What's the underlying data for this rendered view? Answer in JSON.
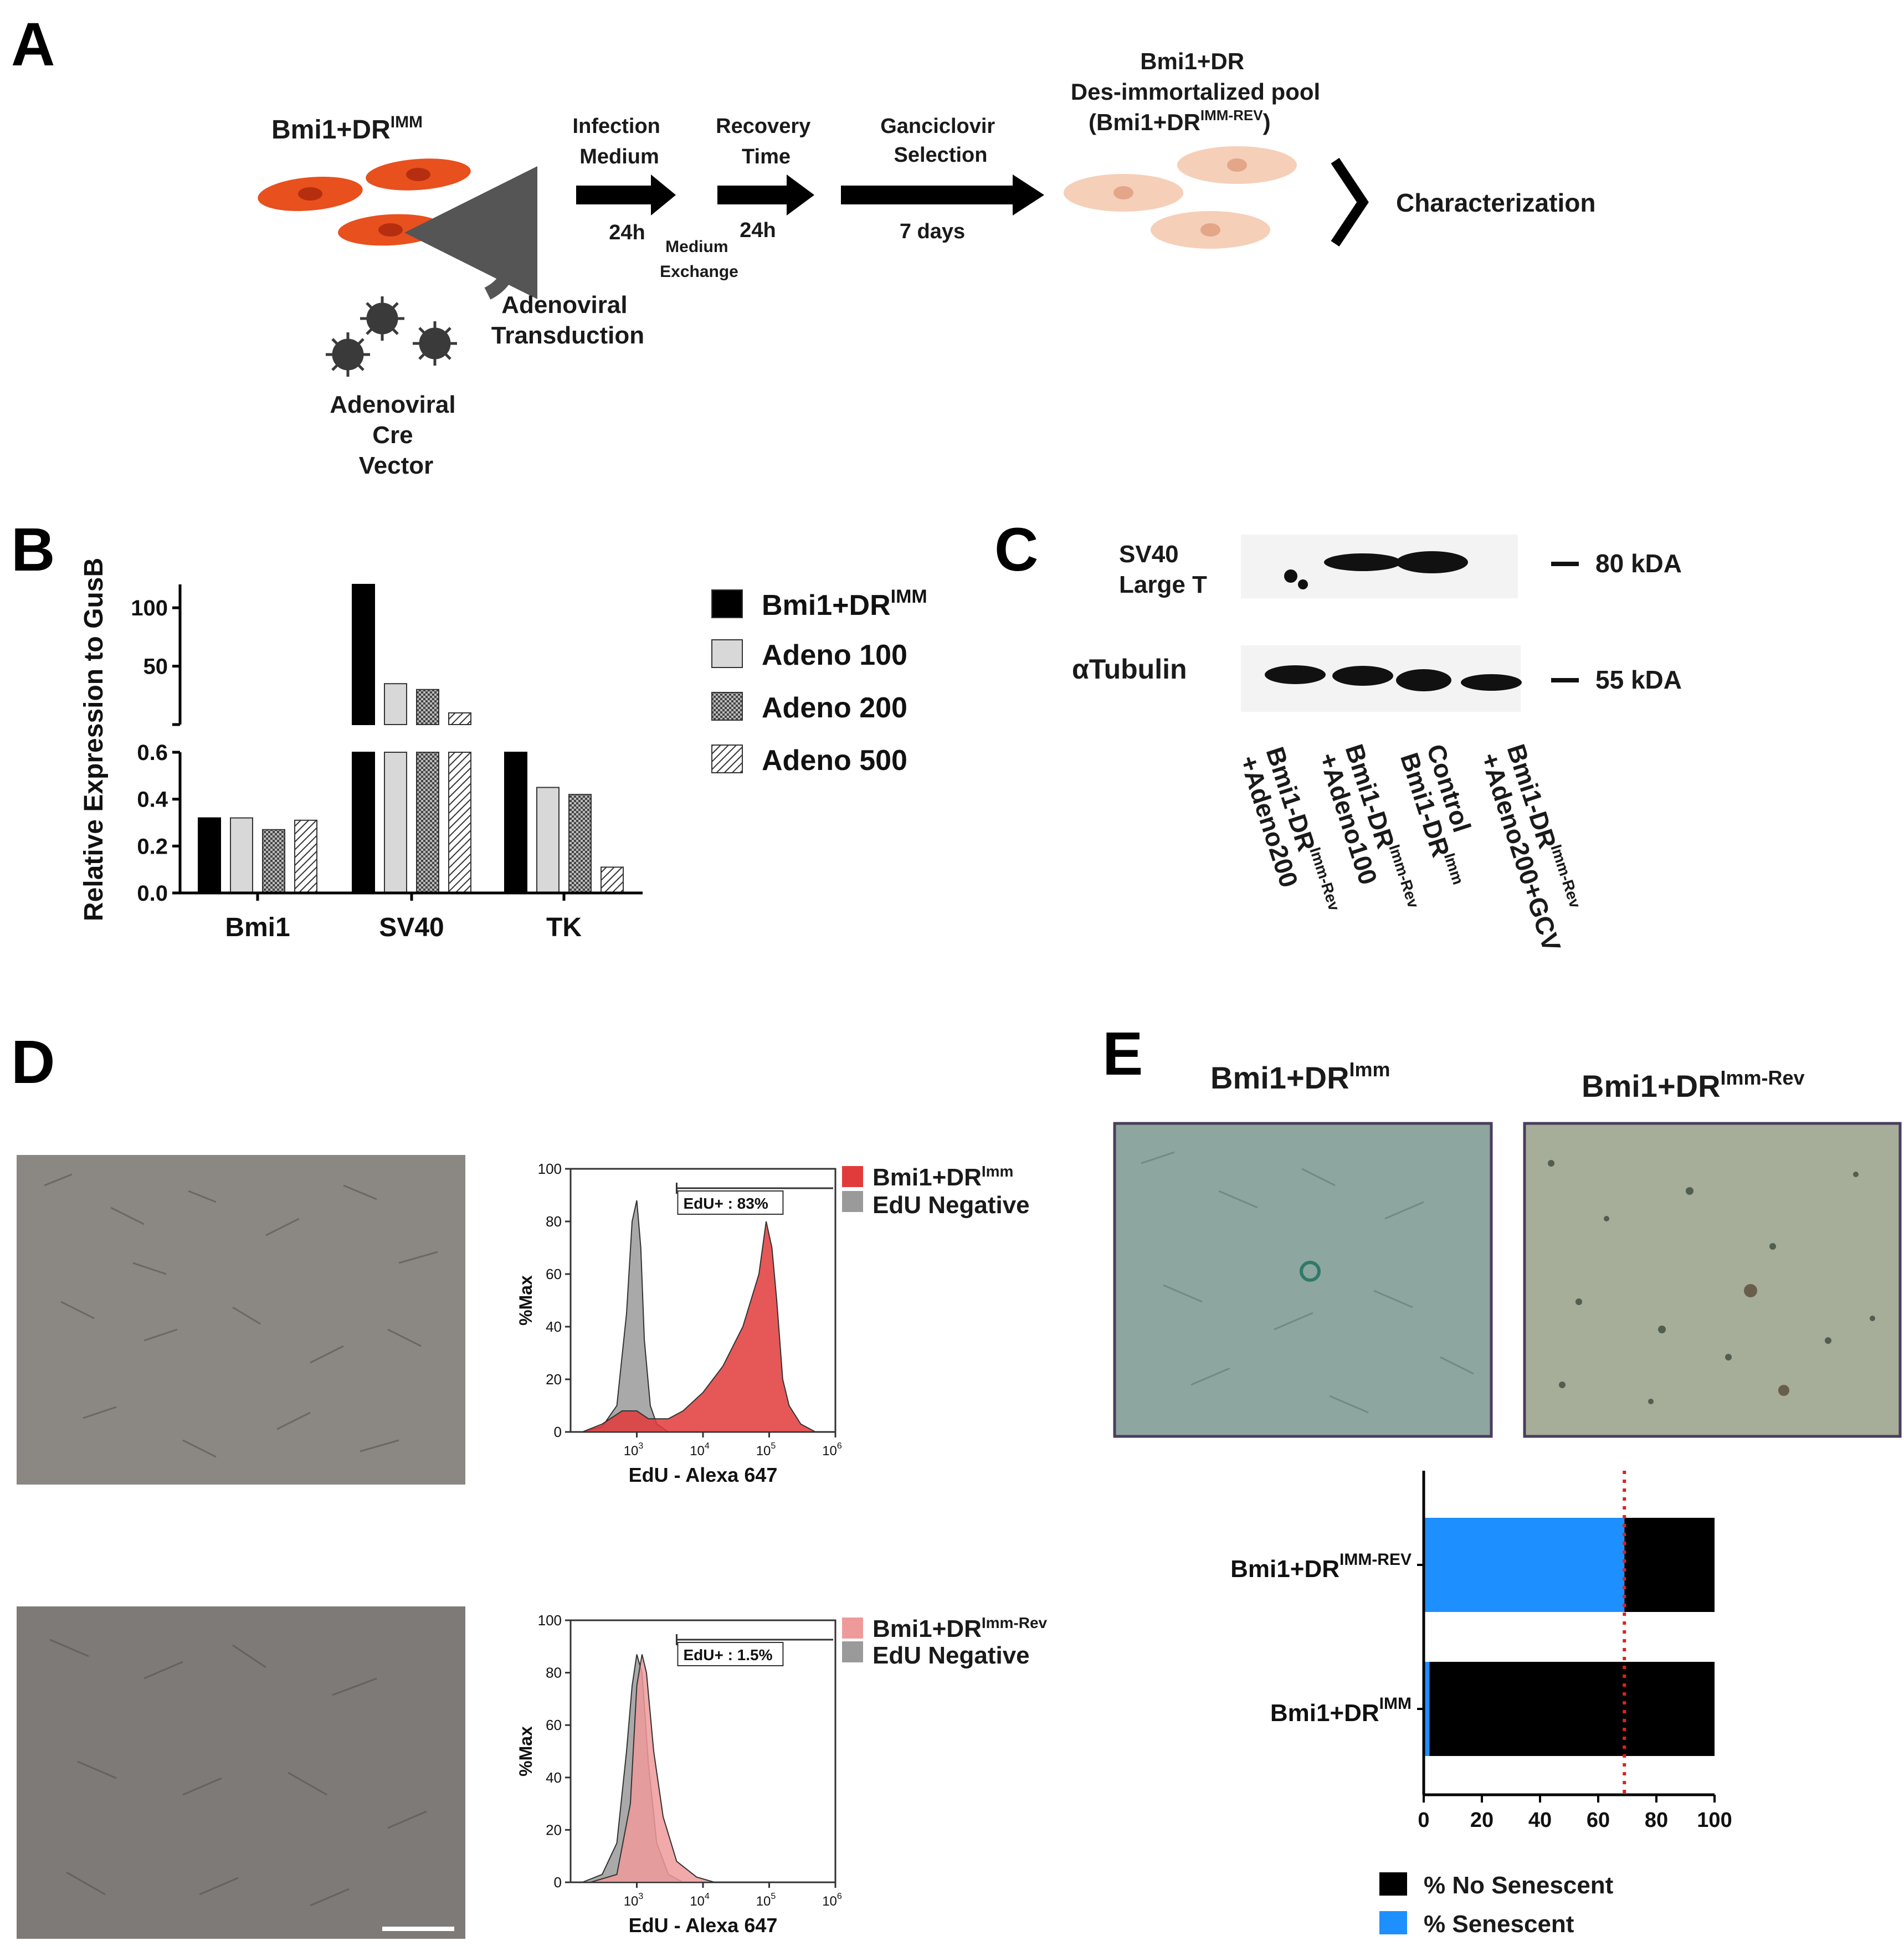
{
  "panels": {
    "a": "A",
    "b": "B",
    "c": "C",
    "d": "D",
    "e": "E"
  },
  "panel_a": {
    "cell_title": "Bmi1+DR",
    "cell_title_sup": "IMM",
    "vector_label": [
      "Adenoviral",
      "Cre",
      "Vector"
    ],
    "transduction_label": [
      "Adenoviral",
      "Transduction"
    ],
    "step1": {
      "label": [
        "Infection",
        "Medium"
      ],
      "time": "24h"
    },
    "medium_exchange": [
      "Medium",
      "Exchange"
    ],
    "step2": {
      "label": [
        "Recovery",
        "Time"
      ],
      "time": "24h"
    },
    "step3": {
      "label": [
        "Ganciclovir",
        "Selection"
      ],
      "time": "7 days"
    },
    "pool_title": [
      "Bmi1+DR",
      "Des-immortalized pool",
      "(Bmi1+DR"
    ],
    "pool_sup": "IMM-REV",
    "characterization": "Characterization",
    "colors": {
      "immortal_cell": "#e8501e",
      "reverted_cell": "#f6cfb8",
      "virus": "#3a3a3a"
    }
  },
  "panel_c": {
    "rows": [
      {
        "label": [
          "SV40",
          "Large T"
        ],
        "marker": "80 kDA"
      },
      {
        "label": [
          "αTubulin"
        ],
        "marker": "55 kDA"
      }
    ],
    "lanes": [
      {
        "line1": "Bmi1-DR",
        "sup": "Imm-Rev",
        "line2": "+Adeno200"
      },
      {
        "line1": "Bmi1-DR",
        "sup": "Imm-Rev",
        "line2": "+Adeno100"
      },
      {
        "line1": "Control",
        "sup": "",
        "line2": "Bmi1-DR",
        "line2_sup": "Imm"
      },
      {
        "line1": "Bmi1-DR",
        "sup": "Imm-Rev",
        "line2": "+Adeno200+GCV"
      }
    ]
  },
  "panel_d": {
    "top": {
      "legend": [
        "Bmi1+DR",
        "EdU Negative"
      ],
      "legend_sup": "Imm",
      "gate": "EdU+ : 83%"
    },
    "bottom": {
      "legend": [
        "Bmi1+DR",
        "EdU Negative"
      ],
      "legend_sup": "Imm-Rev",
      "gate": "EdU+ : 1.5%"
    },
    "xlabel": "EdU - Alexa 647",
    "ylabel": "%Max",
    "yticks": [
      "0",
      "20",
      "40",
      "60",
      "80",
      "100"
    ],
    "xticks": [
      {
        "base": "10",
        "exp": "3"
      },
      {
        "base": "10",
        "exp": "4"
      },
      {
        "base": "10",
        "exp": "5"
      },
      {
        "base": "10",
        "exp": "6"
      }
    ],
    "colors": {
      "edu_pos": "#e23b3b",
      "edu_neg": "#9a9a9a",
      "edu_pos_low": "#ef9a9a"
    }
  },
  "panel_e": {
    "image_titles": [
      {
        "text": "Bmi1+DR",
        "sup": "Imm"
      },
      {
        "text": "Bmi1+DR",
        "sup": "Imm-Rev"
      }
    ],
    "legend": [
      "% No Senescent",
      "% Senescent"
    ],
    "colors": {
      "no_senescent": "#000000",
      "senescent": "#1e8fff",
      "threshold": "#e02020"
    }
  },
  "chart_data": [
    {
      "id": "panel-b",
      "type": "bar",
      "ylabel": "Relative Expression to GusB",
      "categories": [
        "Bmi1",
        "SV40",
        "TK"
      ],
      "series": [
        {
          "name": "Bmi1+DR",
          "name_sup": "IMM",
          "values": [
            0.32,
            120,
            0.6
          ],
          "fill": "#000000"
        },
        {
          "name": "Adeno 100",
          "values": [
            0.32,
            35,
            0.45
          ],
          "fill": "#d8d8d8"
        },
        {
          "name": "Adeno 200",
          "values": [
            0.27,
            30,
            0.42
          ],
          "fill": "checker"
        },
        {
          "name": "Adeno 500",
          "values": [
            0.31,
            10,
            0.11
          ],
          "fill": "hatch"
        }
      ],
      "axis_lower": {
        "ylim": [
          0,
          0.6
        ],
        "ticks": [
          "0.0",
          "0.2",
          "0.4",
          "0.6"
        ]
      },
      "axis_upper": {
        "ylim": [
          0,
          120
        ],
        "ticks": [
          "50",
          "100"
        ]
      },
      "legend_position": "right"
    },
    {
      "id": "panel-d-top",
      "type": "area",
      "xscale": "log",
      "xlim": [
        100,
        1000000
      ],
      "ylim": [
        0,
        100
      ],
      "series": [
        {
          "name": "EdU Negative",
          "x": [
            150,
            300,
            500,
            700,
            850,
            1000,
            1150,
            1300,
            1600,
            2000,
            3000
          ],
          "y": [
            0,
            2,
            10,
            45,
            80,
            88,
            70,
            35,
            10,
            3,
            0
          ]
        },
        {
          "name": "Bmi1+DR",
          "name_sup": "Imm",
          "x": [
            150,
            300,
            600,
            1000,
            1500,
            3000,
            5000,
            10000,
            20000,
            40000,
            70000,
            90000,
            110000,
            130000,
            160000,
            200000,
            300000,
            500000,
            800000
          ],
          "y": [
            0,
            3,
            8,
            8,
            5,
            5,
            8,
            15,
            25,
            40,
            60,
            80,
            70,
            50,
            20,
            10,
            3,
            0,
            0
          ]
        }
      ]
    },
    {
      "id": "panel-d-bottom",
      "type": "area",
      "xscale": "log",
      "xlim": [
        100,
        1000000
      ],
      "ylim": [
        0,
        100
      ],
      "series": [
        {
          "name": "EdU Negative",
          "x": [
            150,
            300,
            500,
            700,
            850,
            1000,
            1200,
            1500,
            2000,
            3000,
            5000
          ],
          "y": [
            0,
            3,
            15,
            50,
            75,
            87,
            80,
            45,
            15,
            3,
            0
          ]
        },
        {
          "name": "Bmi1+DR",
          "name_sup": "Imm-Rev",
          "x": [
            200,
            500,
            800,
            1000,
            1200,
            1400,
            1800,
            2500,
            4000,
            8000,
            15000
          ],
          "y": [
            0,
            3,
            30,
            75,
            87,
            80,
            50,
            25,
            8,
            2,
            0
          ]
        }
      ]
    },
    {
      "id": "panel-e",
      "type": "bar",
      "orientation": "horizontal",
      "stacked": true,
      "categories": [
        "Bmi1+DR",
        "Bmi1+DR"
      ],
      "category_sups": [
        "IMM-REV",
        "IMM"
      ],
      "series": [
        {
          "name": "% Senescent",
          "values": [
            69,
            2
          ]
        },
        {
          "name": "% No Senescent",
          "values": [
            31,
            98
          ]
        }
      ],
      "xlim": [
        0,
        100
      ],
      "xticks": [
        "0",
        "20",
        "40",
        "60",
        "80",
        "100"
      ],
      "threshold": 69
    }
  ]
}
